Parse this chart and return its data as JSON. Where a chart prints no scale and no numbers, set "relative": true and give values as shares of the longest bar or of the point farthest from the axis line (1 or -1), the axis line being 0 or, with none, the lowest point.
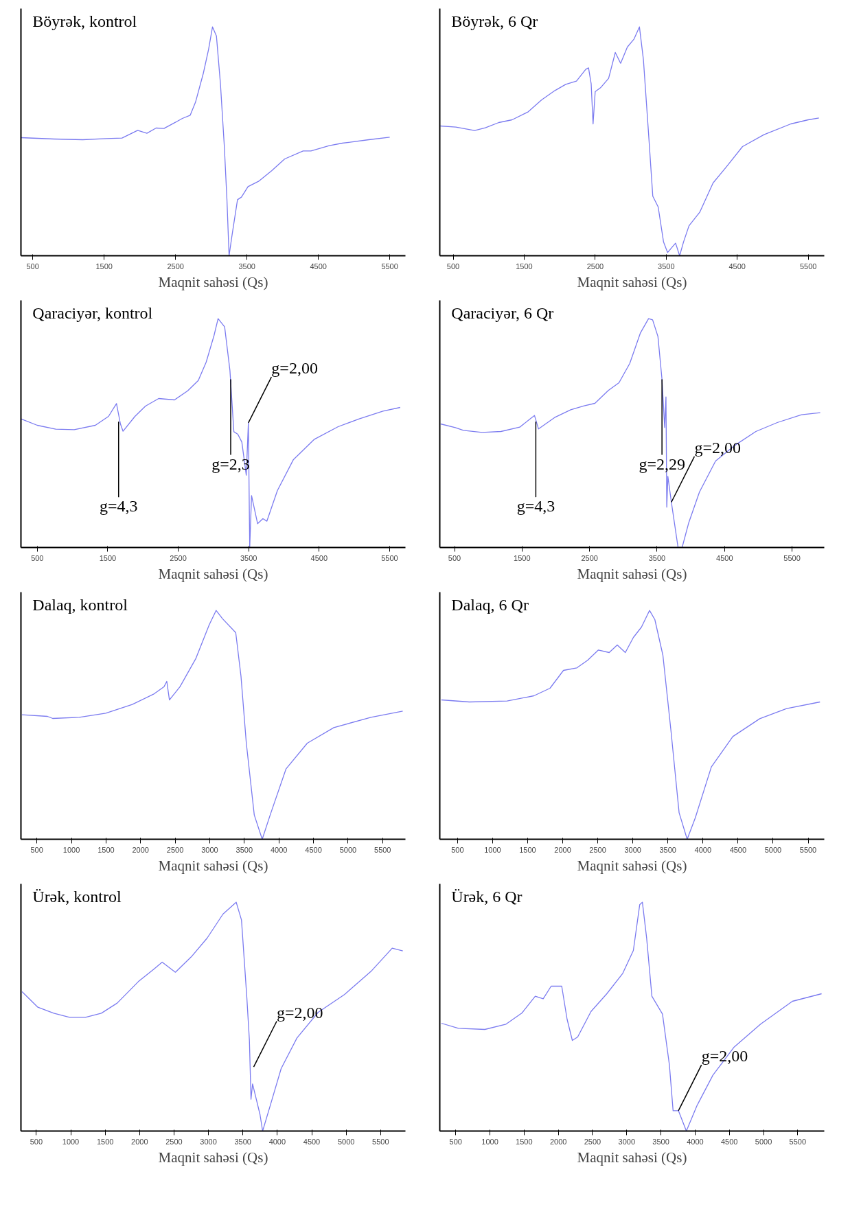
{
  "chart_data": [
    {
      "type": "line",
      "title": "Böyrək, kontrol",
      "xlabel": "Maqnit sahəsi (Qs)",
      "relative": true,
      "xlim": [
        335,
        5720
      ],
      "xticks": [
        500,
        1500,
        2500,
        3500,
        4500,
        5500
      ],
      "x": [
        335,
        800,
        1200,
        1529,
        1750,
        1970,
        2099,
        2228,
        2338,
        2485,
        2596,
        2706,
        2780,
        2890,
        2963,
        3018,
        3073,
        3129,
        3184,
        3220,
        3250,
        3294,
        3368,
        3423,
        3515,
        3662,
        3846,
        4029,
        4287,
        4397,
        4654,
        4838,
        5206,
        5500
      ],
      "series": [
        {
          "color": "#7b7bf0",
          "values": [
            0.516,
            0.51,
            0.507,
            0.512,
            0.514,
            0.548,
            0.535,
            0.558,
            0.556,
            0.581,
            0.6,
            0.614,
            0.671,
            0.798,
            0.902,
            1.0,
            0.96,
            0.752,
            0.475,
            0.245,
            0.0,
            0.095,
            0.245,
            0.256,
            0.302,
            0.325,
            0.371,
            0.423,
            0.458,
            0.458,
            0.481,
            0.492,
            0.507,
            0.518
          ]
        }
      ]
    },
    {
      "type": "line",
      "title": "Böyrək, 6 Qr",
      "xlabel": "Maqnit sahəsi (Qs)",
      "relative": true,
      "xlim": [
        311,
        5726
      ],
      "xticks": [
        500,
        1500,
        2500,
        3500,
        4500,
        5500
      ],
      "x": [
        319,
        538,
        802,
        953,
        1142,
        1330,
        1557,
        1745,
        1934,
        2085,
        2236,
        2368,
        2406,
        2443,
        2470,
        2500,
        2575,
        2689,
        2783,
        2858,
        2953,
        3047,
        3123,
        3179,
        3255,
        3311,
        3387,
        3462,
        3519,
        3632,
        3689,
        3745,
        3821,
        3972,
        4160,
        4349,
        4575,
        4877,
        5255,
        5500,
        5651
      ],
      "series": [
        {
          "color": "#7b7bf0",
          "values": [
            0.567,
            0.562,
            0.547,
            0.559,
            0.582,
            0.594,
            0.629,
            0.681,
            0.722,
            0.749,
            0.763,
            0.815,
            0.821,
            0.752,
            0.576,
            0.717,
            0.734,
            0.775,
            0.888,
            0.841,
            0.912,
            0.947,
            1.0,
            0.857,
            0.518,
            0.26,
            0.213,
            0.061,
            0.014,
            0.055,
            0.0,
            0.061,
            0.131,
            0.19,
            0.318,
            0.389,
            0.477,
            0.529,
            0.576,
            0.594,
            0.602
          ]
        }
      ]
    },
    {
      "type": "line",
      "title": "Qaraciyər, kontrol",
      "xlabel": "Maqnit sahəsi (Qs)",
      "relative": true,
      "xlim": [
        268,
        5725
      ],
      "xticks": [
        500,
        1500,
        2500,
        3500,
        4500,
        5500
      ],
      "x": [
        268,
        500,
        762,
        1024,
        1324,
        1511,
        1624,
        1680,
        1717,
        1886,
        2036,
        2223,
        2448,
        2635,
        2785,
        2897,
        3009,
        3066,
        3159,
        3234,
        3290,
        3346,
        3403,
        3466,
        3496,
        3515,
        3541,
        3627,
        3702,
        3758,
        3908,
        4133,
        4433,
        4770,
        5069,
        5406,
        5650
      ],
      "series": [
        {
          "color": "#7b7bf0",
          "values": [
            0.562,
            0.534,
            0.517,
            0.515,
            0.534,
            0.573,
            0.629,
            0.54,
            0.508,
            0.573,
            0.618,
            0.651,
            0.645,
            0.685,
            0.73,
            0.81,
            0.927,
            1.0,
            0.964,
            0.774,
            0.506,
            0.495,
            0.461,
            0.316,
            0.545,
            0.0,
            0.227,
            0.104,
            0.126,
            0.115,
            0.249,
            0.383,
            0.473,
            0.528,
            0.562,
            0.596,
            0.612
          ]
        }
      ],
      "annotations": [
        {
          "text": "g=4,3",
          "x": 1654,
          "y": 0.55
        },
        {
          "text": "g=2,3",
          "x": 3245,
          "y": 0.735
        },
        {
          "text": "g=2,00",
          "x": 3496,
          "y": 0.545
        }
      ]
    },
    {
      "type": "line",
      "title": "Qaraciyər, 6 Qr",
      "xlabel": "Maqnit sahəsi (Qs)",
      "relative": true,
      "xlim": [
        281,
        5977
      ],
      "xticks": [
        500,
        1500,
        2500,
        3500,
        4500,
        5500
      ],
      "x": [
        293,
        512,
        631,
        909,
        1188,
        1466,
        1625,
        1684,
        1744,
        1982,
        2221,
        2420,
        2579,
        2778,
        2936,
        3095,
        3254,
        3374,
        3434,
        3513,
        3573,
        3613,
        3632,
        3644,
        3660,
        3712,
        3811,
        3871,
        3970,
        4129,
        4367,
        4646,
        4964,
        5281,
        5639,
        5917
      ],
      "series": [
        {
          "color": "#7b7bf0",
          "values": [
            0.54,
            0.524,
            0.512,
            0.503,
            0.507,
            0.526,
            0.563,
            0.577,
            0.518,
            0.568,
            0.602,
            0.619,
            0.63,
            0.686,
            0.72,
            0.804,
            0.938,
            1.0,
            0.995,
            0.922,
            0.735,
            0.524,
            0.658,
            0.176,
            0.311,
            0.198,
            0.0,
            0.0,
            0.109,
            0.243,
            0.378,
            0.445,
            0.507,
            0.546,
            0.58,
            0.589
          ]
        }
      ],
      "annotations": [
        {
          "text": "g=4,3",
          "x": 1704,
          "y": 0.55
        },
        {
          "text": "g=2,29",
          "x": 3573,
          "y": 0.735
        },
        {
          "text": "g=2,00",
          "x": 3712,
          "y": 0.198
        }
      ]
    },
    {
      "type": "line",
      "title": "Dalaq, kontrol",
      "xlabel": "Maqnit sahəsi (Qs)",
      "relative": true,
      "xlim": [
        270,
        5830
      ],
      "xticks": [
        500,
        1000,
        1500,
        2000,
        2500,
        3000,
        3500,
        4000,
        4500,
        5000,
        5500
      ],
      "x": [
        285,
        653,
        730,
        1113,
        1497,
        1880,
        2187,
        2340,
        2379,
        2417,
        2571,
        2801,
        2992,
        3092,
        3184,
        3376,
        3452,
        3529,
        3644,
        3759,
        3874,
        4104,
        4411,
        4794,
        5331,
        5791
      ],
      "series": [
        {
          "color": "#7b7bf0",
          "values": [
            0.544,
            0.537,
            0.528,
            0.533,
            0.551,
            0.589,
            0.634,
            0.667,
            0.69,
            0.609,
            0.667,
            0.791,
            0.937,
            1.0,
            0.964,
            0.903,
            0.712,
            0.42,
            0.106,
            0.0,
            0.106,
            0.308,
            0.42,
            0.488,
            0.533,
            0.56
          ]
        }
      ]
    },
    {
      "type": "line",
      "title": "Dalaq, 6 Qr",
      "xlabel": "Maqnit sahəsi (Qs)",
      "relative": true,
      "xlim": [
        247,
        5730
      ],
      "xticks": [
        500,
        1000,
        1500,
        2000,
        2500,
        3000,
        3500,
        4000,
        4500,
        5000,
        5500
      ],
      "x": [
        270,
        669,
        1206,
        1589,
        1819,
        2011,
        2202,
        2356,
        2509,
        2663,
        2778,
        2893,
        3008,
        3123,
        3238,
        3314,
        3429,
        3545,
        3660,
        3775,
        3890,
        4120,
        4426,
        4810,
        5193,
        5669
      ],
      "series": [
        {
          "color": "#7b7bf0",
          "values": [
            0.609,
            0.6,
            0.604,
            0.627,
            0.66,
            0.738,
            0.749,
            0.782,
            0.827,
            0.816,
            0.849,
            0.816,
            0.882,
            0.927,
            1.0,
            0.96,
            0.804,
            0.471,
            0.116,
            0.0,
            0.093,
            0.316,
            0.449,
            0.527,
            0.571,
            0.6
          ]
        }
      ]
    },
    {
      "type": "line",
      "title": "Ürək, kontrol",
      "xlabel": "Maqnit sahəsi (Qs)",
      "relative": true,
      "xlim": [
        277,
        5861
      ],
      "xticks": [
        500,
        1000,
        1500,
        2000,
        2500,
        3000,
        3500,
        4000,
        4500,
        5000,
        5500
      ],
      "x": [
        293,
        523,
        753,
        984,
        1214,
        1445,
        1675,
        1982,
        2213,
        2328,
        2520,
        2750,
        2981,
        3211,
        3403,
        3480,
        3557,
        3595,
        3618,
        3641,
        3749,
        3787,
        3902,
        4056,
        4286,
        4594,
        4978,
        5362,
        5669,
        5823
      ],
      "series": [
        {
          "color": "#7b7bf0",
          "values": [
            0.609,
            0.541,
            0.515,
            0.497,
            0.497,
            0.515,
            0.559,
            0.653,
            0.709,
            0.738,
            0.694,
            0.761,
            0.843,
            0.948,
            1.0,
            0.922,
            0.586,
            0.396,
            0.139,
            0.206,
            0.072,
            0.0,
            0.116,
            0.273,
            0.407,
            0.519,
            0.597,
            0.698,
            0.799,
            0.787
          ]
        }
      ],
      "annotations": [
        {
          "text": "g=2,00",
          "x": 3657,
          "y": 0.28
        }
      ]
    },
    {
      "type": "line",
      "title": "Ürək, 6 Qr",
      "xlabel": "Maqnit sahəsi (Qs)",
      "relative": true,
      "xlim": [
        267,
        5888
      ],
      "xticks": [
        500,
        1000,
        1500,
        2000,
        2500,
        3000,
        3500,
        4000,
        4500,
        5000,
        5500
      ],
      "x": [
        291,
        539,
        926,
        1236,
        1469,
        1663,
        1779,
        1895,
        2050,
        2128,
        2205,
        2283,
        2477,
        2709,
        2942,
        3097,
        3190,
        3229,
        3291,
        3368,
        3523,
        3624,
        3678,
        3756,
        3872,
        4027,
        4260,
        4570,
        4957,
        5422,
        5849
      ],
      "series": [
        {
          "color": "#7b7bf0",
          "values": [
            0.471,
            0.449,
            0.444,
            0.467,
            0.516,
            0.589,
            0.578,
            0.633,
            0.633,
            0.489,
            0.396,
            0.411,
            0.522,
            0.6,
            0.689,
            0.789,
            0.989,
            1.0,
            0.844,
            0.589,
            0.511,
            0.289,
            0.089,
            0.089,
            0.0,
            0.111,
            0.244,
            0.367,
            0.467,
            0.567,
            0.6
          ]
        }
      ],
      "annotations": [
        {
          "text": "g=2,00",
          "x": 3756,
          "y": 0.089
        }
      ]
    }
  ]
}
